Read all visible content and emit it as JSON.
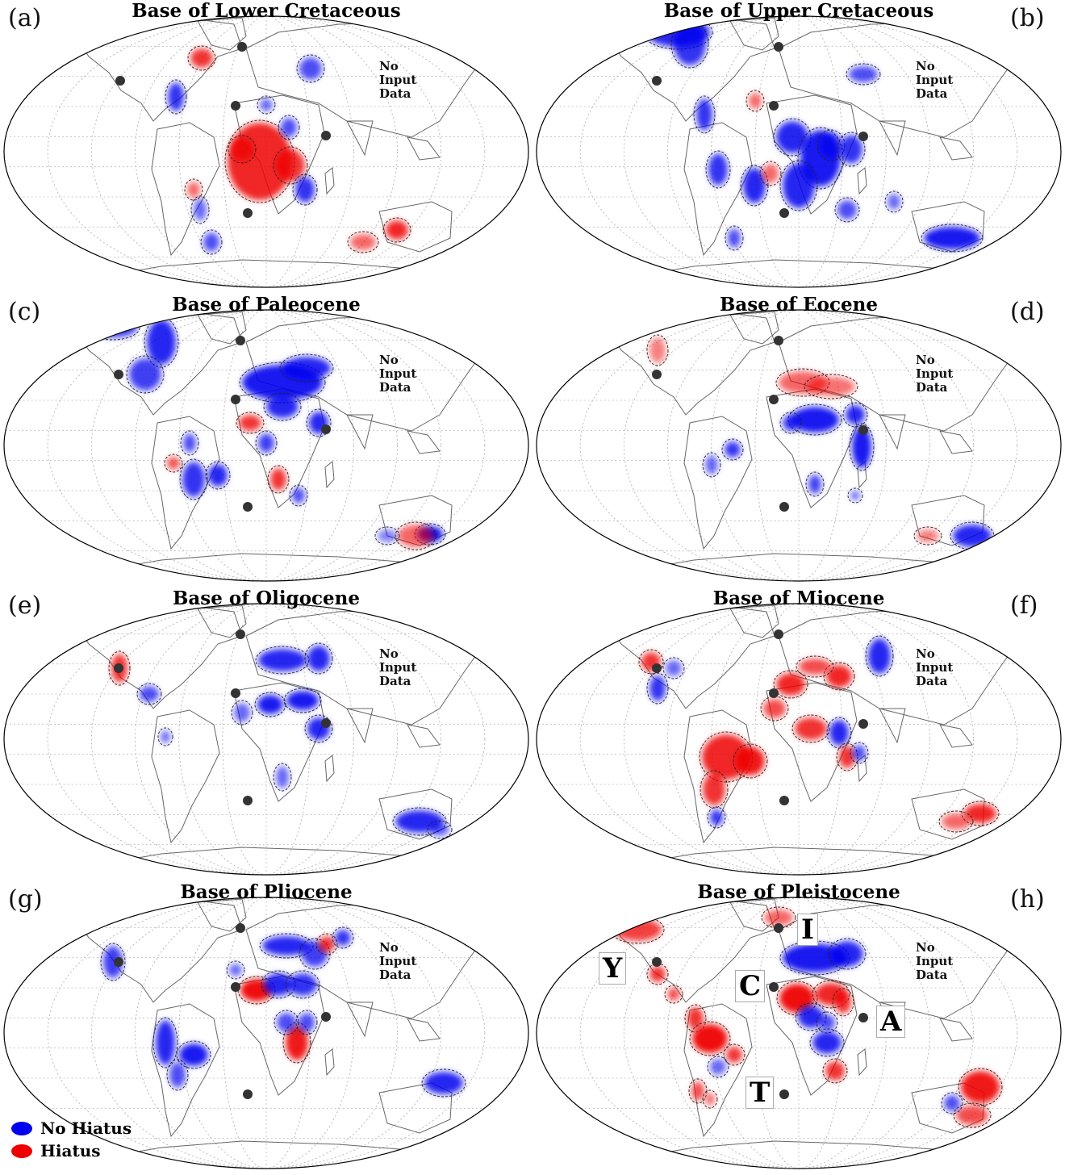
{
  "colors": {
    "no_hiatus": "#0000ee",
    "hiatus": "#ee0000",
    "site": "#333333"
  },
  "no_data_text": [
    "No",
    "Input",
    "Data"
  ],
  "panels": [
    {
      "label": "(a)",
      "title": "Base of Lower Cretaceous"
    },
    {
      "label": "(b)",
      "title": "Base of Upper Cretaceous"
    },
    {
      "label": "(c)",
      "title": "Base of Paleocene"
    },
    {
      "label": "(d)",
      "title": "Base of Eocene"
    },
    {
      "label": "(e)",
      "title": "Base of Oligocene"
    },
    {
      "label": "(f)",
      "title": "Base of Miocene"
    },
    {
      "label": "(g)",
      "title": "Base of Pliocene"
    },
    {
      "label": "(h)",
      "title": "Base of Pleistocene"
    }
  ],
  "site_labels": [
    "Y",
    "I",
    "C",
    "A",
    "T"
  ],
  "legend": {
    "no_hiatus": "No Hiatus",
    "hiatus": "Hiatus"
  }
}
